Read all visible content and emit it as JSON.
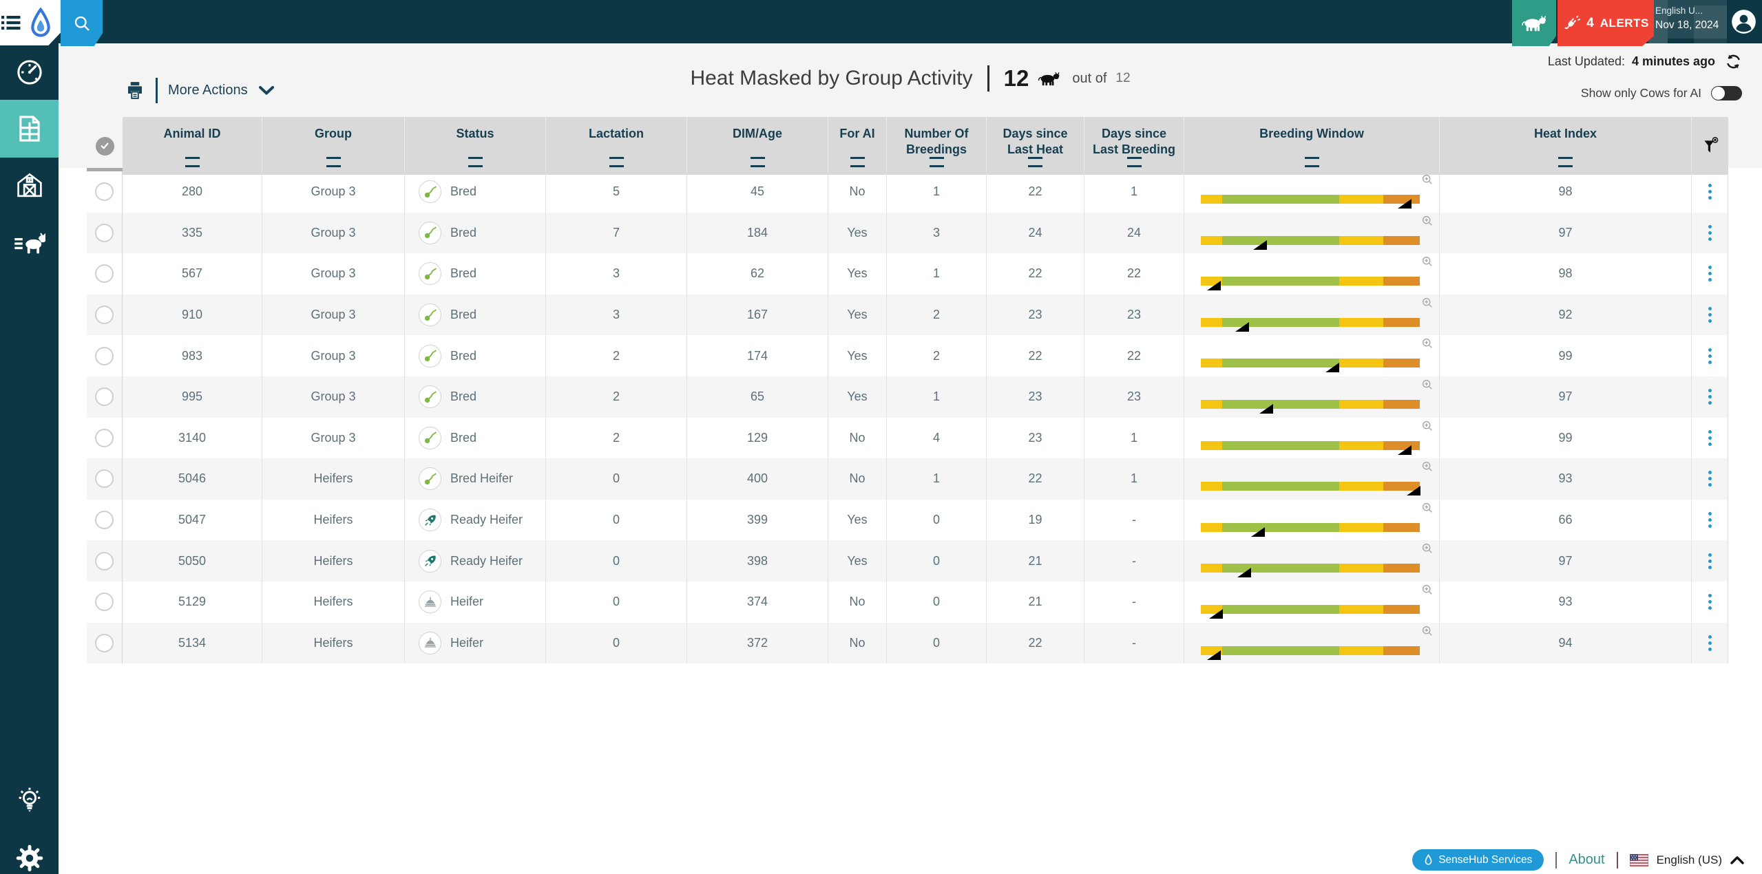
{
  "topbar": {
    "alerts": {
      "count": "4",
      "label": "ALERTS"
    },
    "language_short": "English U...",
    "date": "Nov 18, 2024"
  },
  "sidebar": {
    "items": [
      "dashboard",
      "reports",
      "farm",
      "sort-gate"
    ],
    "bottom_items": [
      "tips",
      "settings"
    ]
  },
  "toolbar": {
    "more_actions_label": "More Actions"
  },
  "page": {
    "title": "Heat Masked by Group Activity",
    "count": "12",
    "out_of_label": "out of",
    "total": "12",
    "last_updated_label": "Last Updated:",
    "last_updated_value": "4 minutes ago",
    "toggle_label": "Show only Cows for AI"
  },
  "table": {
    "columns": [
      "Animal ID",
      "Group",
      "Status",
      "Lactation",
      "DIM/Age",
      "For AI",
      "Number Of Breedings",
      "Days since Last Heat",
      "Days since Last Breeding",
      "Breeding Window",
      "Heat Index"
    ],
    "breeding_window_segments": [
      {
        "color": "#f5c513",
        "pct": 9.6
      },
      {
        "color": "#9fc148",
        "pct": 53.6
      },
      {
        "color": "#f5c513",
        "pct": 20.1
      },
      {
        "color": "#dd8e28",
        "pct": 16.7
      }
    ],
    "rows": [
      {
        "animal_id": "280",
        "group": "Group 3",
        "status": "Bred",
        "status_icon": "sperm-icon",
        "lactation": "5",
        "dim_age": "45",
        "for_ai": "No",
        "breedings": "1",
        "days_since_last_heat": "22",
        "days_since_last_breeding": "1",
        "breeding_marker_pct": 96,
        "heat_index": "98"
      },
      {
        "animal_id": "335",
        "group": "Group 3",
        "status": "Bred",
        "status_icon": "sperm-icon",
        "lactation": "7",
        "dim_age": "184",
        "for_ai": "Yes",
        "breedings": "3",
        "days_since_last_heat": "24",
        "days_since_last_breeding": "24",
        "breeding_marker_pct": 30,
        "heat_index": "97"
      },
      {
        "animal_id": "567",
        "group": "Group 3",
        "status": "Bred",
        "status_icon": "sperm-icon",
        "lactation": "3",
        "dim_age": "62",
        "for_ai": "Yes",
        "breedings": "1",
        "days_since_last_heat": "22",
        "days_since_last_breeding": "22",
        "breeding_marker_pct": 9,
        "heat_index": "98"
      },
      {
        "animal_id": "910",
        "group": "Group 3",
        "status": "Bred",
        "status_icon": "sperm-icon",
        "lactation": "3",
        "dim_age": "167",
        "for_ai": "Yes",
        "breedings": "2",
        "days_since_last_heat": "23",
        "days_since_last_breeding": "23",
        "breeding_marker_pct": 22,
        "heat_index": "92"
      },
      {
        "animal_id": "983",
        "group": "Group 3",
        "status": "Bred",
        "status_icon": "sperm-icon",
        "lactation": "2",
        "dim_age": "174",
        "for_ai": "Yes",
        "breedings": "2",
        "days_since_last_heat": "22",
        "days_since_last_breeding": "22",
        "breeding_marker_pct": 63,
        "heat_index": "99"
      },
      {
        "animal_id": "995",
        "group": "Group 3",
        "status": "Bred",
        "status_icon": "sperm-icon",
        "lactation": "2",
        "dim_age": "65",
        "for_ai": "Yes",
        "breedings": "1",
        "days_since_last_heat": "23",
        "days_since_last_breeding": "23",
        "breeding_marker_pct": 33,
        "heat_index": "97"
      },
      {
        "animal_id": "3140",
        "group": "Group 3",
        "status": "Bred",
        "status_icon": "sperm-icon",
        "lactation": "2",
        "dim_age": "129",
        "for_ai": "No",
        "breedings": "4",
        "days_since_last_heat": "23",
        "days_since_last_breeding": "1",
        "breeding_marker_pct": 96,
        "heat_index": "99"
      },
      {
        "animal_id": "5046",
        "group": "Heifers",
        "status": "Bred Heifer",
        "status_icon": "sperm-icon",
        "lactation": "0",
        "dim_age": "400",
        "for_ai": "No",
        "breedings": "1",
        "days_since_last_heat": "22",
        "days_since_last_breeding": "1",
        "breeding_marker_pct": 100,
        "heat_index": "93"
      },
      {
        "animal_id": "5047",
        "group": "Heifers",
        "status": "Ready Heifer",
        "status_icon": "rocket-icon",
        "lactation": "0",
        "dim_age": "399",
        "for_ai": "Yes",
        "breedings": "0",
        "days_since_last_heat": "19",
        "days_since_last_breeding": "-",
        "breeding_marker_pct": 29,
        "heat_index": "66"
      },
      {
        "animal_id": "5050",
        "group": "Heifers",
        "status": "Ready Heifer",
        "status_icon": "rocket-icon",
        "lactation": "0",
        "dim_age": "398",
        "for_ai": "Yes",
        "breedings": "0",
        "days_since_last_heat": "21",
        "days_since_last_breeding": "-",
        "breeding_marker_pct": 23,
        "heat_index": "97"
      },
      {
        "animal_id": "5129",
        "group": "Heifers",
        "status": "Heifer",
        "status_icon": "cake-icon",
        "lactation": "0",
        "dim_age": "374",
        "for_ai": "No",
        "breedings": "0",
        "days_since_last_heat": "21",
        "days_since_last_breeding": "-",
        "breeding_marker_pct": 10,
        "heat_index": "93"
      },
      {
        "animal_id": "5134",
        "group": "Heifers",
        "status": "Heifer",
        "status_icon": "cake-icon",
        "lactation": "0",
        "dim_age": "372",
        "for_ai": "No",
        "breedings": "0",
        "days_since_last_heat": "22",
        "days_since_last_breeding": "-",
        "breeding_marker_pct": 9,
        "heat_index": "94"
      }
    ]
  },
  "footer": {
    "services_label": "SenseHub Services",
    "about_label": "About",
    "language_label": "English (US)"
  },
  "colors": {
    "topbar": "#0d3744",
    "sidebar_active": "#53bfb7",
    "accent_blue": "#1f9ad6",
    "alert_red": "#ef4134",
    "cow_button_green": "#2f9c87",
    "bar_yellow": "#f5c513",
    "bar_green": "#9fc148",
    "bar_orange": "#dd8e28"
  }
}
